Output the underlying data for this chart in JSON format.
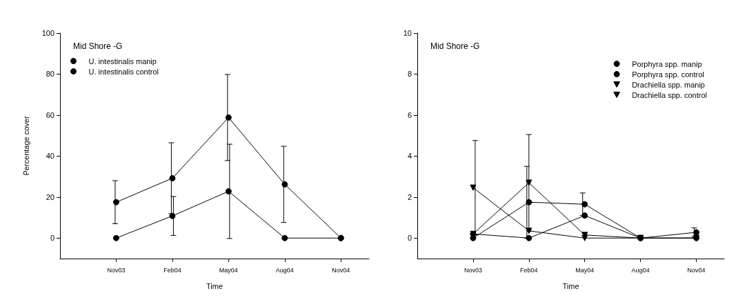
{
  "chart_data": [
    {
      "type": "line",
      "title": "Mid Shore -G",
      "xlabel": "Time",
      "ylabel": "Percentage cover",
      "categories": [
        "Nov03",
        "Feb04",
        "May04",
        "Aug04",
        "Nov04"
      ],
      "ylim": [
        -10,
        100
      ],
      "yticks": [
        0,
        20,
        40,
        60,
        80,
        100
      ],
      "legend": "top left",
      "series": [
        {
          "name": "U. intestinalis manip",
          "color": "#000000",
          "marker": "circle",
          "values": [
            17.5,
            29.2,
            58.8,
            26.2,
            0
          ],
          "errors": [
            10.5,
            17.3,
            21,
            18.6,
            null
          ]
        },
        {
          "name": "U. intestinalis control",
          "color": "#000000",
          "marker": "circle",
          "values": [
            0,
            10.8,
            22.8,
            0,
            0
          ],
          "errors": [
            null,
            9.5,
            23,
            null,
            null
          ]
        }
      ]
    },
    {
      "type": "line",
      "title": "Mid Shore -G",
      "xlabel": "Time",
      "categories": [
        "Nov03",
        "Feb04",
        "May04",
        "Aug04",
        "Nov04"
      ],
      "ylim": [
        -1,
        10
      ],
      "yticks": [
        0,
        2,
        4,
        6,
        8,
        10
      ],
      "legend": "right",
      "series": [
        {
          "name": "Porphyra spp. manip",
          "color": "#000000",
          "marker": "circle",
          "values": [
            0,
            1.75,
            1.65,
            0,
            0.28
          ],
          "errors": [
            null,
            1.75,
            0.55,
            null,
            0.22
          ]
        },
        {
          "name": "Porphyra spp. control",
          "color": "#000000",
          "marker": "circle",
          "values": [
            0.2,
            0,
            1.1,
            0,
            0
          ]
        },
        {
          "name": "Drachiella spp. manip",
          "color": "#000000",
          "marker": "triangle",
          "values": [
            0.2,
            2.7,
            0.15,
            0,
            0
          ],
          "errors": [
            null,
            2.35,
            null,
            null,
            null
          ]
        },
        {
          "name": "Drachiella spp. control",
          "color": "#000000",
          "marker": "triangle",
          "values": [
            2.46,
            0.35,
            0,
            0,
            0
          ],
          "errors": [
            2.3,
            null,
            null,
            null,
            null
          ]
        }
      ]
    }
  ]
}
